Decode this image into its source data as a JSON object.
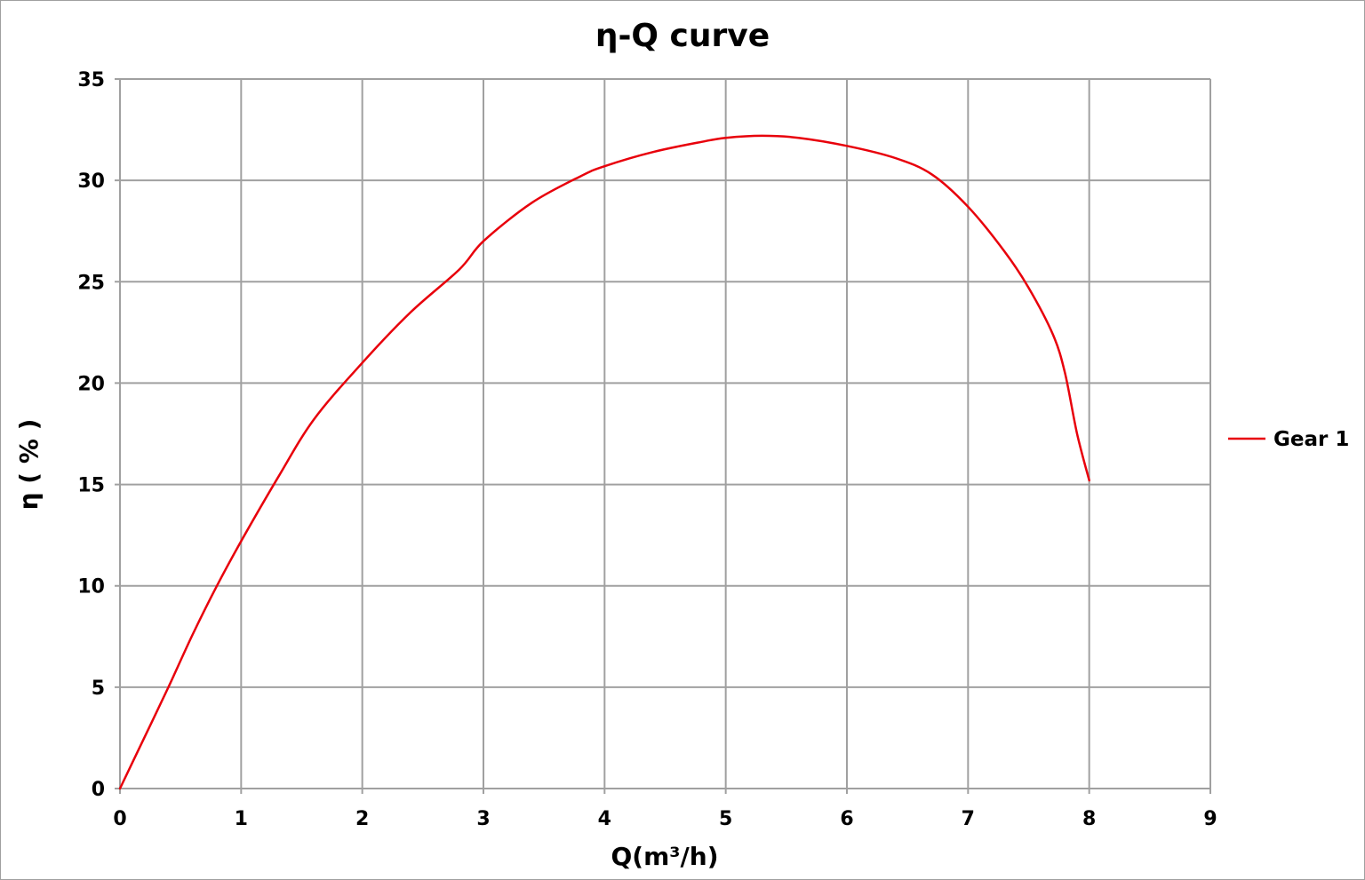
{
  "chart_data": {
    "type": "line",
    "title": "η-Q  curve",
    "xlabel": "Q(m³/h)",
    "ylabel": "η ( % )",
    "xlim": [
      0,
      9
    ],
    "ylim": [
      0,
      35
    ],
    "x_ticks": [
      "0",
      "1",
      "2",
      "3",
      "4",
      "5",
      "6",
      "7",
      "8",
      "9"
    ],
    "y_ticks": [
      "0",
      "5",
      "10",
      "15",
      "20",
      "25",
      "30",
      "35"
    ],
    "grid": true,
    "legend_position": "right",
    "series": [
      {
        "name": "Gear 1",
        "color": "#e8000b",
        "points": [
          [
            0,
            0
          ],
          [
            0.2,
            2.5
          ],
          [
            0.4,
            5.0
          ],
          [
            0.6,
            7.6
          ],
          [
            0.8,
            10.0
          ],
          [
            1.0,
            12.2
          ],
          [
            1.3,
            15.3
          ],
          [
            1.6,
            18.2
          ],
          [
            2.0,
            21.0
          ],
          [
            2.4,
            23.5
          ],
          [
            2.8,
            25.6
          ],
          [
            3.0,
            27.0
          ],
          [
            3.4,
            28.9
          ],
          [
            3.8,
            30.2
          ],
          [
            4.0,
            30.7
          ],
          [
            4.4,
            31.4
          ],
          [
            4.8,
            31.9
          ],
          [
            5.0,
            32.1
          ],
          [
            5.3,
            32.2
          ],
          [
            5.6,
            32.1
          ],
          [
            6.0,
            31.7
          ],
          [
            6.4,
            31.1
          ],
          [
            6.7,
            30.3
          ],
          [
            7.0,
            28.7
          ],
          [
            7.3,
            26.5
          ],
          [
            7.5,
            24.7
          ],
          [
            7.7,
            22.4
          ],
          [
            7.8,
            20.5
          ],
          [
            7.9,
            17.5
          ],
          [
            8.0,
            15.2
          ]
        ]
      }
    ]
  }
}
